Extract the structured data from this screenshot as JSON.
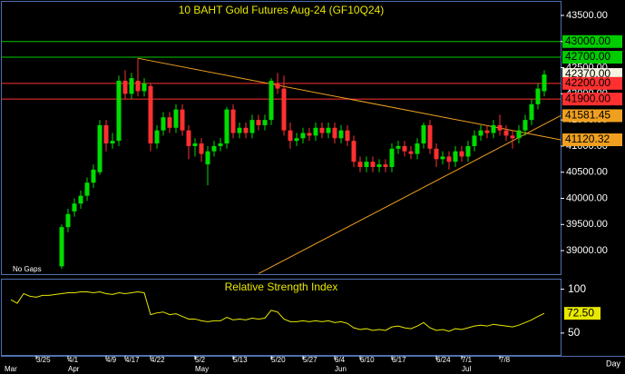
{
  "chart_data": {
    "type": "candlestick",
    "title": "10 BAHT  Gold  Futures  Aug-24  (GF10Q24)",
    "annotation": "No Gaps",
    "x_axis_label": "Day",
    "categories": [
      null,
      null,
      null,
      null,
      null,
      "3/25",
      null,
      null,
      null,
      null,
      "4/1",
      null,
      null,
      null,
      null,
      null,
      "4/9",
      null,
      null,
      "4/17",
      null,
      null,
      null,
      "4/22",
      null,
      null,
      null,
      null,
      null,
      null,
      "5/2",
      null,
      null,
      null,
      null,
      null,
      "5/13",
      null,
      null,
      null,
      null,
      null,
      "5/20",
      null,
      null,
      null,
      null,
      "5/27",
      null,
      null,
      null,
      null,
      "6/4",
      null,
      null,
      null,
      "6/10",
      null,
      null,
      null,
      null,
      "6/17",
      null,
      null,
      null,
      null,
      null,
      null,
      "6/24",
      null,
      null,
      null,
      "7/1",
      null,
      null,
      null,
      null,
      null,
      "7/8",
      null,
      null,
      null,
      null,
      null,
      null,
      null
    ],
    "months": [
      "Mar",
      null,
      null,
      null,
      null,
      null,
      null,
      null,
      null,
      null,
      "Apr",
      null,
      null,
      null,
      null,
      null,
      null,
      null,
      null,
      null,
      null,
      null,
      null,
      null,
      null,
      null,
      null,
      null,
      null,
      null,
      "May",
      null,
      null,
      null,
      null,
      null,
      null,
      null,
      null,
      null,
      null,
      null,
      null,
      null,
      null,
      null,
      null,
      null,
      null,
      null,
      null,
      null,
      "Jun",
      null,
      null,
      null,
      null,
      null,
      null,
      null,
      null,
      null,
      null,
      null,
      null,
      null,
      null,
      null,
      null,
      null,
      null,
      null,
      "Jul",
      null,
      null,
      null,
      null,
      null,
      null,
      null,
      null,
      null,
      null,
      null,
      null,
      null
    ],
    "open": [
      null,
      null,
      null,
      null,
      null,
      null,
      null,
      null,
      null,
      38700,
      39450,
      39750,
      39900,
      40050,
      40300,
      40500,
      41400,
      41050,
      41100,
      42250,
      42000,
      42250,
      42050,
      42150,
      41050,
      41300,
      41550,
      41350,
      41700,
      41300,
      41000,
      41050,
      40650,
      40900,
      41000,
      41050,
      41700,
      41250,
      41350,
      41250,
      41500,
      41400,
      41500,
      42200,
      42100,
      41300,
      41100,
      41150,
      41250,
      41200,
      41350,
      41250,
      41350,
      41150,
      41300,
      41100,
      40700,
      40600,
      40700,
      40600,
      40650,
      40600,
      40950,
      41000,
      40900,
      40850,
      41050,
      41400,
      40950,
      40750,
      40800,
      40700,
      40900,
      40800,
      41000,
      41200,
      41300,
      41250,
      41400,
      41300,
      41200,
      41150,
      41300,
      41500,
      41800,
      42050
    ],
    "high": [
      null,
      null,
      null,
      null,
      null,
      null,
      null,
      null,
      null,
      39500,
      39800,
      40000,
      40150,
      40400,
      40650,
      41500,
      41500,
      41250,
      42350,
      42450,
      42400,
      42680,
      42300,
      42200,
      41400,
      41650,
      41650,
      41800,
      41800,
      41400,
      41150,
      41150,
      41000,
      41100,
      41150,
      41750,
      41800,
      41450,
      41450,
      41600,
      41600,
      41600,
      42300,
      42400,
      42350,
      41450,
      41250,
      41350,
      41350,
      41450,
      41450,
      41450,
      41450,
      41400,
      41400,
      41200,
      40800,
      40800,
      40800,
      40750,
      40750,
      41050,
      41100,
      41100,
      41000,
      41150,
      41450,
      41500,
      41050,
      40900,
      40900,
      41000,
      41000,
      41100,
      41300,
      41400,
      41400,
      41500,
      41600,
      41400,
      41300,
      41400,
      41600,
      41900,
      42200,
      42450
    ],
    "low": [
      null,
      null,
      null,
      null,
      null,
      null,
      null,
      null,
      null,
      38650,
      39350,
      39650,
      39800,
      39950,
      40200,
      40450,
      40900,
      40950,
      41000,
      41900,
      41900,
      41950,
      41950,
      40900,
      40950,
      41200,
      41250,
      41250,
      41200,
      40750,
      40800,
      40700,
      40250,
      40800,
      40900,
      40950,
      41150,
      41150,
      41150,
      41150,
      41300,
      41300,
      41400,
      42000,
      41200,
      40950,
      41000,
      41050,
      41100,
      41100,
      41150,
      41150,
      41050,
      41050,
      41000,
      40600,
      40500,
      40500,
      40500,
      40500,
      40500,
      40500,
      40850,
      40800,
      40750,
      40750,
      40950,
      40850,
      40600,
      40650,
      40550,
      40600,
      40700,
      40700,
      40900,
      41100,
      41150,
      41150,
      41200,
      41100,
      40950,
      41050,
      41200,
      41400,
      41700,
      41950
    ],
    "close": [
      null,
      null,
      null,
      null,
      null,
      null,
      null,
      null,
      null,
      39450,
      39700,
      39900,
      40050,
      40300,
      40550,
      41400,
      41050,
      41100,
      42250,
      42000,
      42300,
      42050,
      42200,
      41050,
      41300,
      41550,
      41350,
      41700,
      41300,
      41000,
      41050,
      40850,
      40900,
      41000,
      41050,
      41700,
      41250,
      41350,
      41250,
      41500,
      41400,
      41500,
      42250,
      42100,
      41300,
      41100,
      41150,
      41250,
      41200,
      41350,
      41250,
      41350,
      41150,
      41300,
      41100,
      40700,
      40600,
      40700,
      40600,
      40650,
      40600,
      40950,
      41000,
      40900,
      40850,
      41050,
      41400,
      40950,
      40750,
      40800,
      40700,
      40900,
      40800,
      41000,
      41200,
      41300,
      41250,
      41400,
      41300,
      41200,
      41150,
      41300,
      41500,
      41800,
      42100,
      42370
    ],
    "up_color": "#00dd00",
    "down_color": "#ff3030",
    "ylim": [
      38550,
      43760
    ],
    "yticks": [
      {
        "value": 39000,
        "label": "39000.00"
      },
      {
        "value": 39500,
        "label": "39500.00"
      },
      {
        "value": 40000,
        "label": "40000.00"
      },
      {
        "value": 40500,
        "label": "40500.00"
      },
      {
        "value": 41000,
        "label": "41000.00"
      },
      {
        "value": 41500,
        "label": "41500.00"
      },
      {
        "value": 42000,
        "label": "42000.00"
      },
      {
        "value": 42500,
        "label": "42500.00"
      },
      {
        "value": 43000,
        "label": "43000.00"
      },
      {
        "value": 43500,
        "label": "43500.00"
      }
    ],
    "levels": [
      {
        "value": 43000,
        "label": "43000.00",
        "color": "#00cc00",
        "line": true
      },
      {
        "value": 42700,
        "label": "42700.00",
        "color": "#00cc00",
        "line": true
      },
      {
        "value": 41581.45,
        "label": "41581.45",
        "color": "#f0a020",
        "line": false
      },
      {
        "value": 41120.32,
        "label": "41120.32",
        "color": "#f0a020",
        "line": false
      },
      {
        "value": 42370,
        "label": "42370.00",
        "color": "#f4f4e0",
        "line": false
      },
      {
        "value": 42200,
        "label": "42200.00",
        "color": "#ff3030",
        "line": true
      },
      {
        "value": 41900,
        "label": "41900.00",
        "color": "#ff3030",
        "line": true
      }
    ],
    "trendlines": [
      {
        "start_index": 21,
        "start_value": 42680,
        "end_value": 41120.32,
        "color": "#f0a020"
      },
      {
        "start_index": 40,
        "start_value": 38560,
        "end_value": 41581.45,
        "color": "#f0a020"
      }
    ],
    "rsi": {
      "title": "Relative  Strength  Index",
      "color": "#e8e800",
      "values": [
        null,
        88,
        84,
        95,
        92,
        91,
        93,
        93,
        94,
        95,
        96,
        96,
        97,
        97,
        96,
        97,
        95,
        94,
        96,
        95,
        96,
        97,
        96,
        71,
        73,
        74,
        71,
        72,
        69,
        66,
        66,
        64,
        63,
        64,
        64,
        68,
        65,
        66,
        65,
        67,
        66,
        67,
        76,
        74,
        66,
        63,
        63,
        64,
        63,
        64,
        63,
        64,
        62,
        63,
        61,
        56,
        54,
        55,
        53,
        54,
        53,
        57,
        58,
        56,
        55,
        58,
        62,
        56,
        53,
        54,
        52,
        55,
        54,
        56,
        58,
        59,
        58,
        60,
        59,
        58,
        57,
        59,
        62,
        65,
        69,
        72.5
      ],
      "value_label": "72.50",
      "ylim": [
        24,
        111
      ],
      "yticks": [
        50,
        100
      ]
    }
  }
}
